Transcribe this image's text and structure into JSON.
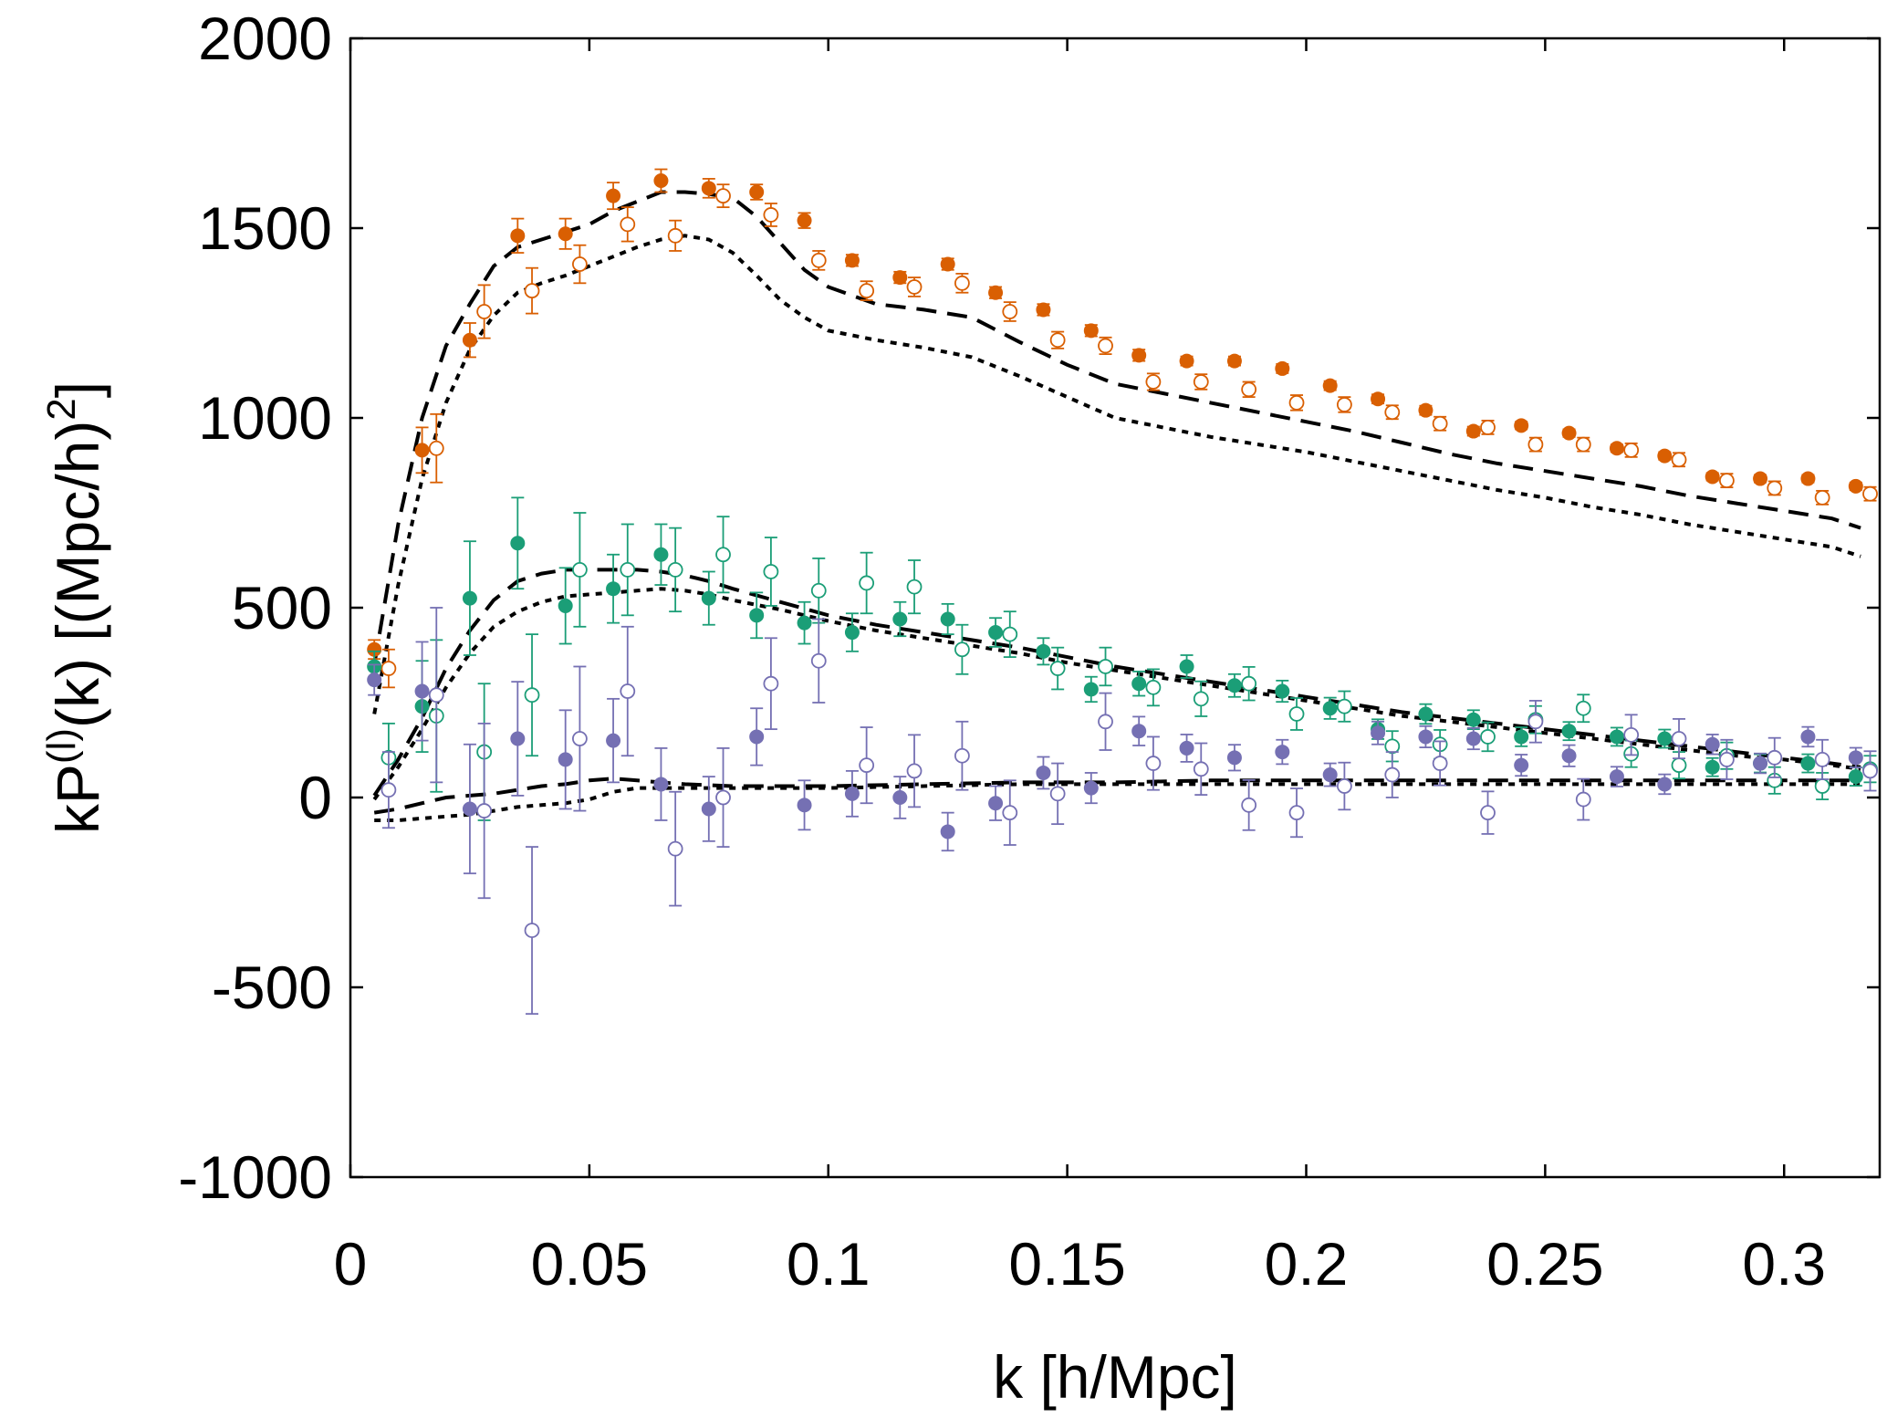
{
  "chart_data": {
    "type": "scatter",
    "xlabel": "k [h/Mpc]",
    "ylabel": {
      "base": "kP",
      "sup1": "(l)",
      "mid": "(k) [(Mpc/h)",
      "sup2": "2",
      "end": "]"
    },
    "xlim": [
      0,
      0.32
    ],
    "ylim": [
      -1000,
      2000
    ],
    "x_ticks": [
      0,
      0.05,
      0.1,
      0.15,
      0.2,
      0.25,
      0.3
    ],
    "x_tick_labels": [
      "0",
      "0.05",
      "0.1",
      "0.15",
      "0.2",
      "0.25",
      "0.3"
    ],
    "y_ticks": [
      -1000,
      -500,
      0,
      500,
      1000,
      1500,
      2000
    ],
    "y_tick_labels": [
      "-1000",
      "-500",
      "0",
      "500",
      "1000",
      "1500",
      "2000"
    ],
    "grid": false,
    "colors": {
      "monopole": "#d95f02",
      "quadrupole": "#1b9e77",
      "hexadecapole": "#7570b3",
      "model": "#000000"
    },
    "series": [
      {
        "name": "monopole-filled",
        "color": "#d95f02",
        "marker": "filled-circle",
        "x": [
          0.005,
          0.015,
          0.025,
          0.035,
          0.045,
          0.055,
          0.065,
          0.075,
          0.085,
          0.095,
          0.105,
          0.115,
          0.125,
          0.135,
          0.145,
          0.155,
          0.165,
          0.175,
          0.185,
          0.195,
          0.205,
          0.215,
          0.225,
          0.235,
          0.245,
          0.255,
          0.265,
          0.275,
          0.285,
          0.295,
          0.305,
          0.315
        ],
        "y": [
          390,
          915,
          1205,
          1480,
          1485,
          1585,
          1625,
          1605,
          1595,
          1520,
          1415,
          1370,
          1405,
          1330,
          1285,
          1230,
          1165,
          1150,
          1150,
          1130,
          1085,
          1050,
          1020,
          965,
          980,
          960,
          920,
          900,
          845,
          840,
          840,
          820
        ],
        "err": [
          25,
          60,
          45,
          45,
          40,
          35,
          30,
          25,
          20,
          20,
          15,
          15,
          15,
          15,
          15,
          15,
          15,
          12,
          12,
          12,
          12,
          12,
          12,
          12,
          10,
          10,
          10,
          10,
          10,
          10,
          10,
          10
        ]
      },
      {
        "name": "monopole-open",
        "color": "#d95f02",
        "marker": "open-circle",
        "x": [
          0.008,
          0.018,
          0.028,
          0.038,
          0.048,
          0.058,
          0.068,
          0.078,
          0.088,
          0.098,
          0.108,
          0.118,
          0.128,
          0.138,
          0.148,
          0.158,
          0.168,
          0.178,
          0.188,
          0.198,
          0.208,
          0.218,
          0.228,
          0.238,
          0.248,
          0.258,
          0.268,
          0.278,
          0.288,
          0.298,
          0.308,
          0.318
        ],
        "y": [
          340,
          920,
          1280,
          1335,
          1405,
          1510,
          1480,
          1585,
          1535,
          1415,
          1335,
          1345,
          1355,
          1280,
          1205,
          1190,
          1095,
          1095,
          1075,
          1040,
          1035,
          1015,
          985,
          975,
          930,
          930,
          915,
          890,
          835,
          815,
          790,
          800
        ],
        "err": [
          50,
          90,
          70,
          60,
          50,
          45,
          40,
          30,
          30,
          25,
          25,
          25,
          25,
          25,
          22,
          22,
          22,
          20,
          20,
          20,
          20,
          18,
          18,
          18,
          18,
          18,
          18,
          18,
          18,
          18,
          18,
          18
        ]
      },
      {
        "name": "quadrupole-filled",
        "color": "#1b9e77",
        "marker": "filled-circle",
        "x": [
          0.005,
          0.015,
          0.025,
          0.035,
          0.045,
          0.055,
          0.065,
          0.075,
          0.085,
          0.095,
          0.105,
          0.115,
          0.125,
          0.135,
          0.145,
          0.155,
          0.165,
          0.175,
          0.185,
          0.195,
          0.205,
          0.215,
          0.225,
          0.235,
          0.245,
          0.255,
          0.265,
          0.275,
          0.285,
          0.295,
          0.305,
          0.315
        ],
        "y": [
          345,
          240,
          525,
          670,
          505,
          550,
          640,
          525,
          480,
          460,
          435,
          470,
          470,
          435,
          385,
          285,
          300,
          345,
          295,
          280,
          235,
          180,
          220,
          205,
          160,
          175,
          160,
          155,
          80,
          90,
          90,
          55
        ],
        "err": [
          40,
          120,
          150,
          120,
          100,
          90,
          80,
          70,
          60,
          55,
          50,
          45,
          40,
          38,
          35,
          33,
          32,
          30,
          30,
          28,
          28,
          26,
          26,
          25,
          25,
          24,
          24,
          24,
          24,
          24,
          24,
          24
        ]
      },
      {
        "name": "quadrupole-open",
        "color": "#1b9e77",
        "marker": "open-circle",
        "x": [
          0.008,
          0.018,
          0.028,
          0.038,
          0.048,
          0.058,
          0.068,
          0.078,
          0.088,
          0.098,
          0.108,
          0.118,
          0.128,
          0.138,
          0.148,
          0.158,
          0.168,
          0.178,
          0.188,
          0.198,
          0.208,
          0.218,
          0.228,
          0.238,
          0.248,
          0.258,
          0.268,
          0.278,
          0.288,
          0.298,
          0.308,
          0.318
        ],
        "y": [
          105,
          215,
          120,
          270,
          600,
          600,
          600,
          640,
          595,
          545,
          565,
          555,
          390,
          430,
          340,
          345,
          290,
          260,
          300,
          220,
          240,
          135,
          140,
          160,
          205,
          235,
          115,
          85,
          110,
          45,
          30,
          75
        ],
        "err": [
          90,
          200,
          180,
          160,
          150,
          120,
          110,
          100,
          90,
          85,
          80,
          70,
          65,
          60,
          55,
          50,
          48,
          46,
          44,
          42,
          40,
          40,
          38,
          38,
          36,
          36,
          35,
          35,
          35,
          35,
          35,
          35
        ]
      },
      {
        "name": "hexadecapole-filled",
        "color": "#7570b3",
        "marker": "filled-circle",
        "x": [
          0.005,
          0.015,
          0.025,
          0.035,
          0.045,
          0.055,
          0.065,
          0.075,
          0.085,
          0.095,
          0.105,
          0.115,
          0.125,
          0.135,
          0.145,
          0.155,
          0.165,
          0.175,
          0.185,
          0.195,
          0.205,
          0.215,
          0.225,
          0.235,
          0.245,
          0.255,
          0.265,
          0.275,
          0.285,
          0.295,
          0.305,
          0.315
        ],
        "y": [
          310,
          280,
          -30,
          155,
          100,
          150,
          35,
          -30,
          160,
          -20,
          10,
          0,
          -90,
          -15,
          65,
          25,
          175,
          130,
          105,
          120,
          60,
          170,
          160,
          155,
          85,
          110,
          55,
          35,
          140,
          90,
          160,
          105
        ],
        "err": [
          40,
          130,
          170,
          150,
          130,
          110,
          95,
          85,
          75,
          65,
          60,
          55,
          50,
          45,
          42,
          40,
          38,
          36,
          34,
          32,
          30,
          30,
          28,
          28,
          28,
          28,
          26,
          26,
          26,
          26,
          26,
          26
        ]
      },
      {
        "name": "hexadecapole-open",
        "color": "#7570b3",
        "marker": "open-circle",
        "x": [
          0.008,
          0.018,
          0.028,
          0.038,
          0.048,
          0.058,
          0.068,
          0.078,
          0.088,
          0.098,
          0.108,
          0.118,
          0.128,
          0.138,
          0.148,
          0.158,
          0.168,
          0.178,
          0.188,
          0.198,
          0.208,
          0.218,
          0.228,
          0.238,
          0.248,
          0.258,
          0.268,
          0.278,
          0.288,
          0.298,
          0.308,
          0.318
        ],
        "y": [
          20,
          270,
          -35,
          -350,
          155,
          280,
          -135,
          0,
          300,
          360,
          85,
          70,
          110,
          -40,
          10,
          200,
          90,
          75,
          -20,
          -40,
          30,
          60,
          90,
          -40,
          200,
          -5,
          165,
          155,
          100,
          105,
          100,
          70
        ],
        "err": [
          100,
          230,
          230,
          220,
          190,
          170,
          150,
          130,
          120,
          110,
          100,
          95,
          90,
          85,
          80,
          75,
          70,
          68,
          66,
          64,
          62,
          60,
          58,
          56,
          55,
          54,
          53,
          52,
          52,
          52,
          52,
          52
        ]
      }
    ],
    "models": [
      {
        "name": "monopole-model-dashed",
        "dash": "dashed",
        "x": [
          0.005,
          0.01,
          0.015,
          0.02,
          0.025,
          0.03,
          0.035,
          0.04,
          0.045,
          0.05,
          0.055,
          0.06,
          0.065,
          0.07,
          0.075,
          0.08,
          0.085,
          0.09,
          0.095,
          0.1,
          0.11,
          0.12,
          0.13,
          0.14,
          0.15,
          0.16,
          0.17,
          0.18,
          0.19,
          0.2,
          0.21,
          0.22,
          0.23,
          0.24,
          0.25,
          0.26,
          0.27,
          0.28,
          0.29,
          0.3,
          0.31,
          0.316
        ],
        "y": [
          350,
          720,
          1000,
          1190,
          1300,
          1400,
          1450,
          1470,
          1490,
          1510,
          1545,
          1570,
          1595,
          1595,
          1590,
          1580,
          1530,
          1460,
          1390,
          1345,
          1300,
          1285,
          1265,
          1200,
          1140,
          1090,
          1065,
          1040,
          1015,
          990,
          965,
          935,
          905,
          880,
          860,
          840,
          820,
          795,
          775,
          755,
          735,
          710
        ]
      },
      {
        "name": "monopole-model-dotted",
        "dash": "dotted",
        "x": [
          0.005,
          0.01,
          0.015,
          0.02,
          0.025,
          0.03,
          0.035,
          0.04,
          0.045,
          0.05,
          0.055,
          0.06,
          0.065,
          0.07,
          0.075,
          0.08,
          0.085,
          0.09,
          0.095,
          0.1,
          0.11,
          0.12,
          0.13,
          0.14,
          0.15,
          0.16,
          0.17,
          0.18,
          0.19,
          0.2,
          0.21,
          0.22,
          0.23,
          0.24,
          0.25,
          0.26,
          0.27,
          0.28,
          0.29,
          0.3,
          0.31,
          0.316
        ],
        "y": [
          220,
          560,
          840,
          1040,
          1180,
          1270,
          1330,
          1355,
          1375,
          1400,
          1425,
          1450,
          1470,
          1480,
          1470,
          1435,
          1375,
          1310,
          1265,
          1230,
          1205,
          1185,
          1160,
          1110,
          1055,
          1000,
          975,
          950,
          930,
          910,
          885,
          860,
          835,
          810,
          790,
          765,
          745,
          720,
          700,
          680,
          660,
          635
        ]
      },
      {
        "name": "quadrupole-model-dashed",
        "dash": "dashed",
        "x": [
          0.005,
          0.01,
          0.015,
          0.02,
          0.025,
          0.03,
          0.035,
          0.04,
          0.045,
          0.05,
          0.055,
          0.06,
          0.065,
          0.07,
          0.075,
          0.08,
          0.09,
          0.1,
          0.11,
          0.12,
          0.13,
          0.14,
          0.15,
          0.16,
          0.17,
          0.18,
          0.19,
          0.2,
          0.21,
          0.22,
          0.23,
          0.24,
          0.25,
          0.26,
          0.27,
          0.28,
          0.29,
          0.3,
          0.31,
          0.316
        ],
        "y": [
          5,
          100,
          210,
          340,
          440,
          520,
          570,
          590,
          600,
          600,
          600,
          600,
          595,
          585,
          570,
          550,
          515,
          480,
          455,
          435,
          415,
          395,
          370,
          345,
          325,
          305,
          285,
          265,
          245,
          225,
          210,
          195,
          180,
          165,
          150,
          135,
          120,
          105,
          90,
          80
        ]
      },
      {
        "name": "quadrupole-model-dotted",
        "dash": "dotted",
        "x": [
          0.005,
          0.01,
          0.015,
          0.02,
          0.025,
          0.03,
          0.035,
          0.04,
          0.045,
          0.05,
          0.055,
          0.06,
          0.065,
          0.07,
          0.075,
          0.08,
          0.09,
          0.1,
          0.11,
          0.12,
          0.13,
          0.14,
          0.15,
          0.16,
          0.17,
          0.18,
          0.19,
          0.2,
          0.21,
          0.22,
          0.23,
          0.24,
          0.25,
          0.26,
          0.27,
          0.28,
          0.29,
          0.3,
          0.31,
          0.316
        ],
        "y": [
          -5,
          80,
          180,
          290,
          380,
          450,
          490,
          515,
          530,
          535,
          540,
          545,
          550,
          545,
          535,
          520,
          495,
          465,
          440,
          420,
          400,
          380,
          355,
          335,
          315,
          295,
          275,
          255,
          235,
          215,
          200,
          185,
          170,
          155,
          140,
          125,
          110,
          100,
          85,
          75
        ]
      },
      {
        "name": "hexadecapole-model-dashed",
        "dash": "dashed",
        "x": [
          0.005,
          0.01,
          0.015,
          0.02,
          0.025,
          0.03,
          0.035,
          0.04,
          0.045,
          0.05,
          0.055,
          0.06,
          0.065,
          0.07,
          0.08,
          0.09,
          0.1,
          0.12,
          0.14,
          0.16,
          0.18,
          0.2,
          0.22,
          0.24,
          0.26,
          0.28,
          0.3,
          0.316
        ],
        "y": [
          -40,
          -30,
          -15,
          0,
          5,
          10,
          20,
          30,
          35,
          45,
          50,
          45,
          40,
          35,
          30,
          30,
          30,
          35,
          40,
          40,
          45,
          45,
          45,
          45,
          45,
          45,
          45,
          45
        ]
      },
      {
        "name": "hexadecapole-model-dotted",
        "dash": "dotted",
        "x": [
          0.005,
          0.01,
          0.015,
          0.02,
          0.025,
          0.03,
          0.035,
          0.04,
          0.045,
          0.05,
          0.055,
          0.06,
          0.065,
          0.07,
          0.08,
          0.09,
          0.1,
          0.12,
          0.14,
          0.16,
          0.18,
          0.2,
          0.22,
          0.24,
          0.26,
          0.28,
          0.3,
          0.316
        ],
        "y": [
          -60,
          -60,
          -55,
          -50,
          -45,
          -35,
          -25,
          -20,
          -15,
          -5,
          15,
          25,
          25,
          25,
          25,
          25,
          25,
          30,
          35,
          35,
          35,
          35,
          35,
          35,
          35,
          35,
          35,
          35
        ]
      }
    ]
  }
}
